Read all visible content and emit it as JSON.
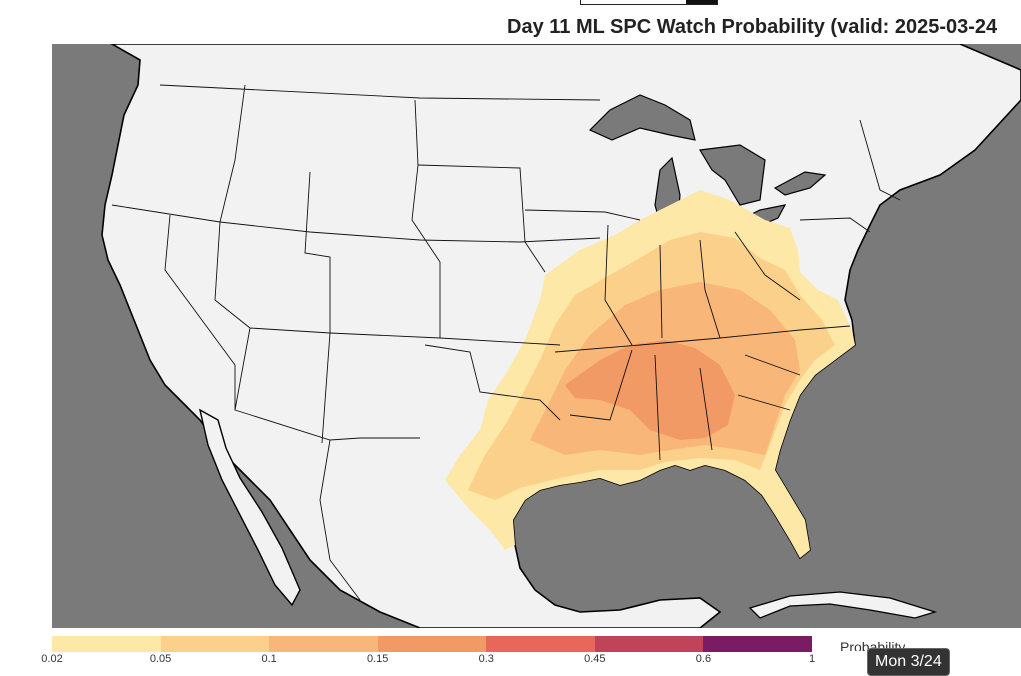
{
  "title": "Day 11 ML SPC Watch Probability (valid: 2025-03-24",
  "colorbar": {
    "label": "Probability",
    "ticks": [
      "0.02",
      "0.05",
      "0.1",
      "0.15",
      "0.3",
      "0.45",
      "0.6",
      "1"
    ],
    "colors": [
      "#fde8a8",
      "#fbd08a",
      "#f8b678",
      "#f29a66",
      "#e8675a",
      "#c1435a",
      "#7a1c63"
    ]
  },
  "date_badge": "Mon 3/24",
  "map_colors": {
    "ocean": "#7a7a7a",
    "land": "#f2f2f2",
    "prob_low": "#fde8a8",
    "prob_mid": "#fbd08a",
    "prob_high": "#f8b678",
    "prob_max": "#f29a66"
  }
}
